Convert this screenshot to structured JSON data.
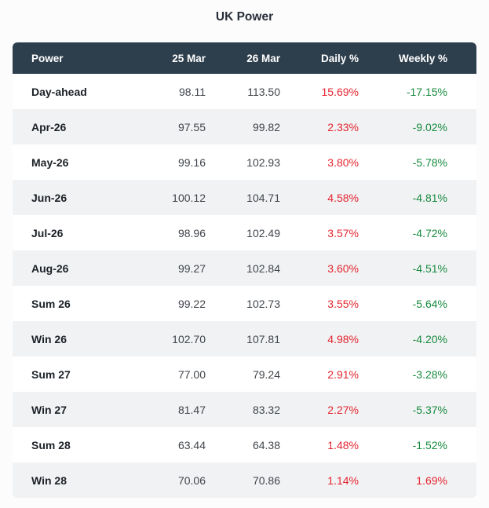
{
  "page": {
    "title": "UK Power"
  },
  "colors": {
    "header_bg": "#2d3e4c",
    "header_text": "#ffffff",
    "row_bg": "#ffffff",
    "row_alt_bg": "#f1f2f4",
    "negative_red": "#e5252f",
    "positive_green": "#178a3e"
  },
  "chart_data": {
    "type": "table",
    "title": "UK Power",
    "columns": [
      "Power",
      "25 Mar",
      "26 Mar",
      "Daily %",
      "Weekly %"
    ],
    "rows": [
      {
        "power": "Day-ahead",
        "mar25": "98.11",
        "mar26": "113.50",
        "daily_pct": "15.69%",
        "daily_color": "red",
        "weekly_pct": "-17.15%",
        "weekly_color": "green"
      },
      {
        "power": "Apr-26",
        "mar25": "97.55",
        "mar26": "99.82",
        "daily_pct": "2.33%",
        "daily_color": "red",
        "weekly_pct": "-9.02%",
        "weekly_color": "green"
      },
      {
        "power": "May-26",
        "mar25": "99.16",
        "mar26": "102.93",
        "daily_pct": "3.80%",
        "daily_color": "red",
        "weekly_pct": "-5.78%",
        "weekly_color": "green"
      },
      {
        "power": "Jun-26",
        "mar25": "100.12",
        "mar26": "104.71",
        "daily_pct": "4.58%",
        "daily_color": "red",
        "weekly_pct": "-4.81%",
        "weekly_color": "green"
      },
      {
        "power": "Jul-26",
        "mar25": "98.96",
        "mar26": "102.49",
        "daily_pct": "3.57%",
        "daily_color": "red",
        "weekly_pct": "-4.72%",
        "weekly_color": "green"
      },
      {
        "power": "Aug-26",
        "mar25": "99.27",
        "mar26": "102.84",
        "daily_pct": "3.60%",
        "daily_color": "red",
        "weekly_pct": "-4.51%",
        "weekly_color": "green"
      },
      {
        "power": "Sum 26",
        "mar25": "99.22",
        "mar26": "102.73",
        "daily_pct": "3.55%",
        "daily_color": "red",
        "weekly_pct": "-5.64%",
        "weekly_color": "green"
      },
      {
        "power": "Win 26",
        "mar25": "102.70",
        "mar26": "107.81",
        "daily_pct": "4.98%",
        "daily_color": "red",
        "weekly_pct": "-4.20%",
        "weekly_color": "green"
      },
      {
        "power": "Sum 27",
        "mar25": "77.00",
        "mar26": "79.24",
        "daily_pct": "2.91%",
        "daily_color": "red",
        "weekly_pct": "-3.28%",
        "weekly_color": "green"
      },
      {
        "power": "Win 27",
        "mar25": "81.47",
        "mar26": "83.32",
        "daily_pct": "2.27%",
        "daily_color": "red",
        "weekly_pct": "-5.37%",
        "weekly_color": "green"
      },
      {
        "power": "Sum 28",
        "mar25": "63.44",
        "mar26": "64.38",
        "daily_pct": "1.48%",
        "daily_color": "red",
        "weekly_pct": "-1.52%",
        "weekly_color": "green"
      },
      {
        "power": "Win 28",
        "mar25": "70.06",
        "mar26": "70.86",
        "daily_pct": "1.14%",
        "daily_color": "red",
        "weekly_pct": "1.69%",
        "weekly_color": "red"
      }
    ]
  }
}
